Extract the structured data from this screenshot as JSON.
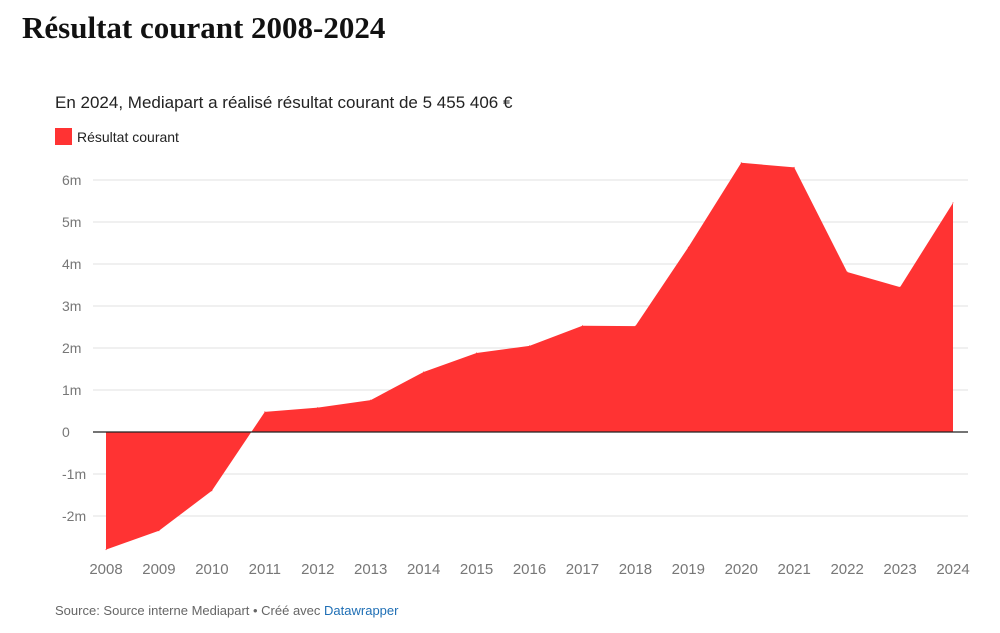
{
  "chart_data": {
    "type": "area",
    "title": "Résultat courant 2008-2024",
    "subtitle": "En 2024, Mediapart a réalisé résultat courant de 5 455 406 €",
    "legend": "top-left",
    "series": [
      {
        "name": "Résultat courant",
        "color": "#ff3333",
        "values": [
          -2800000,
          -2350000,
          -1400000,
          480000,
          580000,
          760000,
          1430000,
          1880000,
          2050000,
          2530000,
          2520000,
          4400000,
          6410000,
          6300000,
          3810000,
          3450000,
          5455406
        ]
      }
    ],
    "x": [
      "2008",
      "2009",
      "2010",
      "2011",
      "2012",
      "2013",
      "2014",
      "2015",
      "2016",
      "2017",
      "2018",
      "2019",
      "2020",
      "2021",
      "2022",
      "2023",
      "2024"
    ],
    "ylim": [
      -2800000,
      6500000
    ],
    "y_ticks": [
      {
        "value": 6000000,
        "label": "6m"
      },
      {
        "value": 5000000,
        "label": "5m"
      },
      {
        "value": 4000000,
        "label": "4m"
      },
      {
        "value": 3000000,
        "label": "3m"
      },
      {
        "value": 2000000,
        "label": "2m"
      },
      {
        "value": 1000000,
        "label": "1m"
      },
      {
        "value": 0,
        "label": "0"
      },
      {
        "value": -1000000,
        "label": "-1m"
      },
      {
        "value": -2000000,
        "label": "-2m"
      }
    ],
    "grid": true
  },
  "footer": {
    "source_text": "Source: Source interne Mediapart • Créé avec ",
    "link_text": "Datawrapper"
  },
  "colors": {
    "area": "#ff3333",
    "grid": "#e2e2e2",
    "axis_text": "#777777",
    "zero_line": "#222222"
  }
}
